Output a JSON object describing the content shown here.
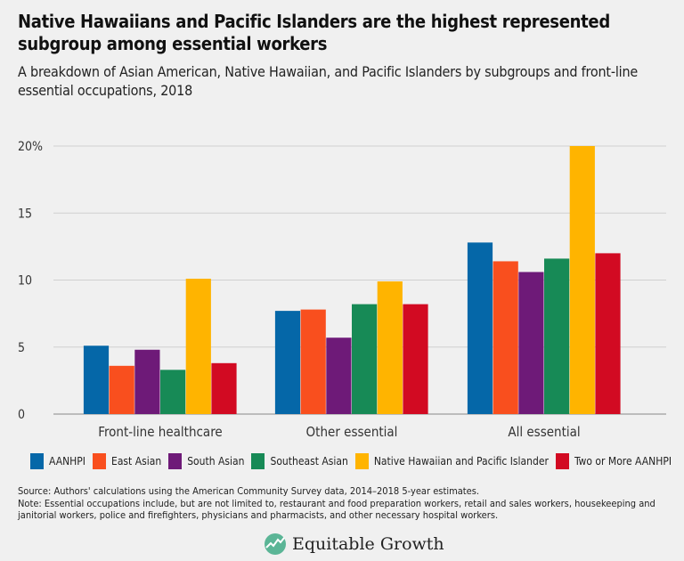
{
  "title": "Native Hawaiians and Pacific Islanders are the highest represented subgroup among essential workers",
  "subtitle": "A breakdown of Asian American, Native Hawaiian, and Pacific Islanders by subgroups and front-line essential occupations, 2018",
  "chart_data": {
    "type": "bar",
    "categories": [
      "Front-line healthcare",
      "Other essential",
      "All essential"
    ],
    "series": [
      {
        "name": "AANHPI",
        "color": "#0567a8",
        "values": [
          5.1,
          7.7,
          12.8
        ]
      },
      {
        "name": "East Asian",
        "color": "#f94f1e",
        "values": [
          3.6,
          7.8,
          11.4
        ]
      },
      {
        "name": "South Asian",
        "color": "#6e1a78",
        "values": [
          4.8,
          5.7,
          10.6
        ]
      },
      {
        "name": "Southeast Asian",
        "color": "#178a56",
        "values": [
          3.3,
          8.2,
          11.6
        ]
      },
      {
        "name": "Native Hawaiian and Pacific Islander",
        "color": "#ffb400",
        "values": [
          10.1,
          9.9,
          20.0
        ]
      },
      {
        "name": "Two or More AANHPI",
        "color": "#d20a22",
        "values": [
          3.8,
          8.2,
          12.0
        ]
      }
    ],
    "yticks": [
      "0",
      "5",
      "10",
      "15",
      "20%"
    ],
    "ytick_values": [
      0,
      5,
      10,
      15,
      20
    ],
    "ylim": [
      0,
      20
    ],
    "grid": true,
    "legend": "bottom"
  },
  "source": "Source: Authors' calculations using the American Community Survey data, 2014–2018 5-year estimates.",
  "note": "Note: Essential occupations include, but are not limited to, restaurant and food preparation workers, retail and sales workers, housekeeping and janitorial workers, police and firefighters, physicians and pharmacists, and other necessary hospital workers.",
  "logo": "Equitable Growth"
}
